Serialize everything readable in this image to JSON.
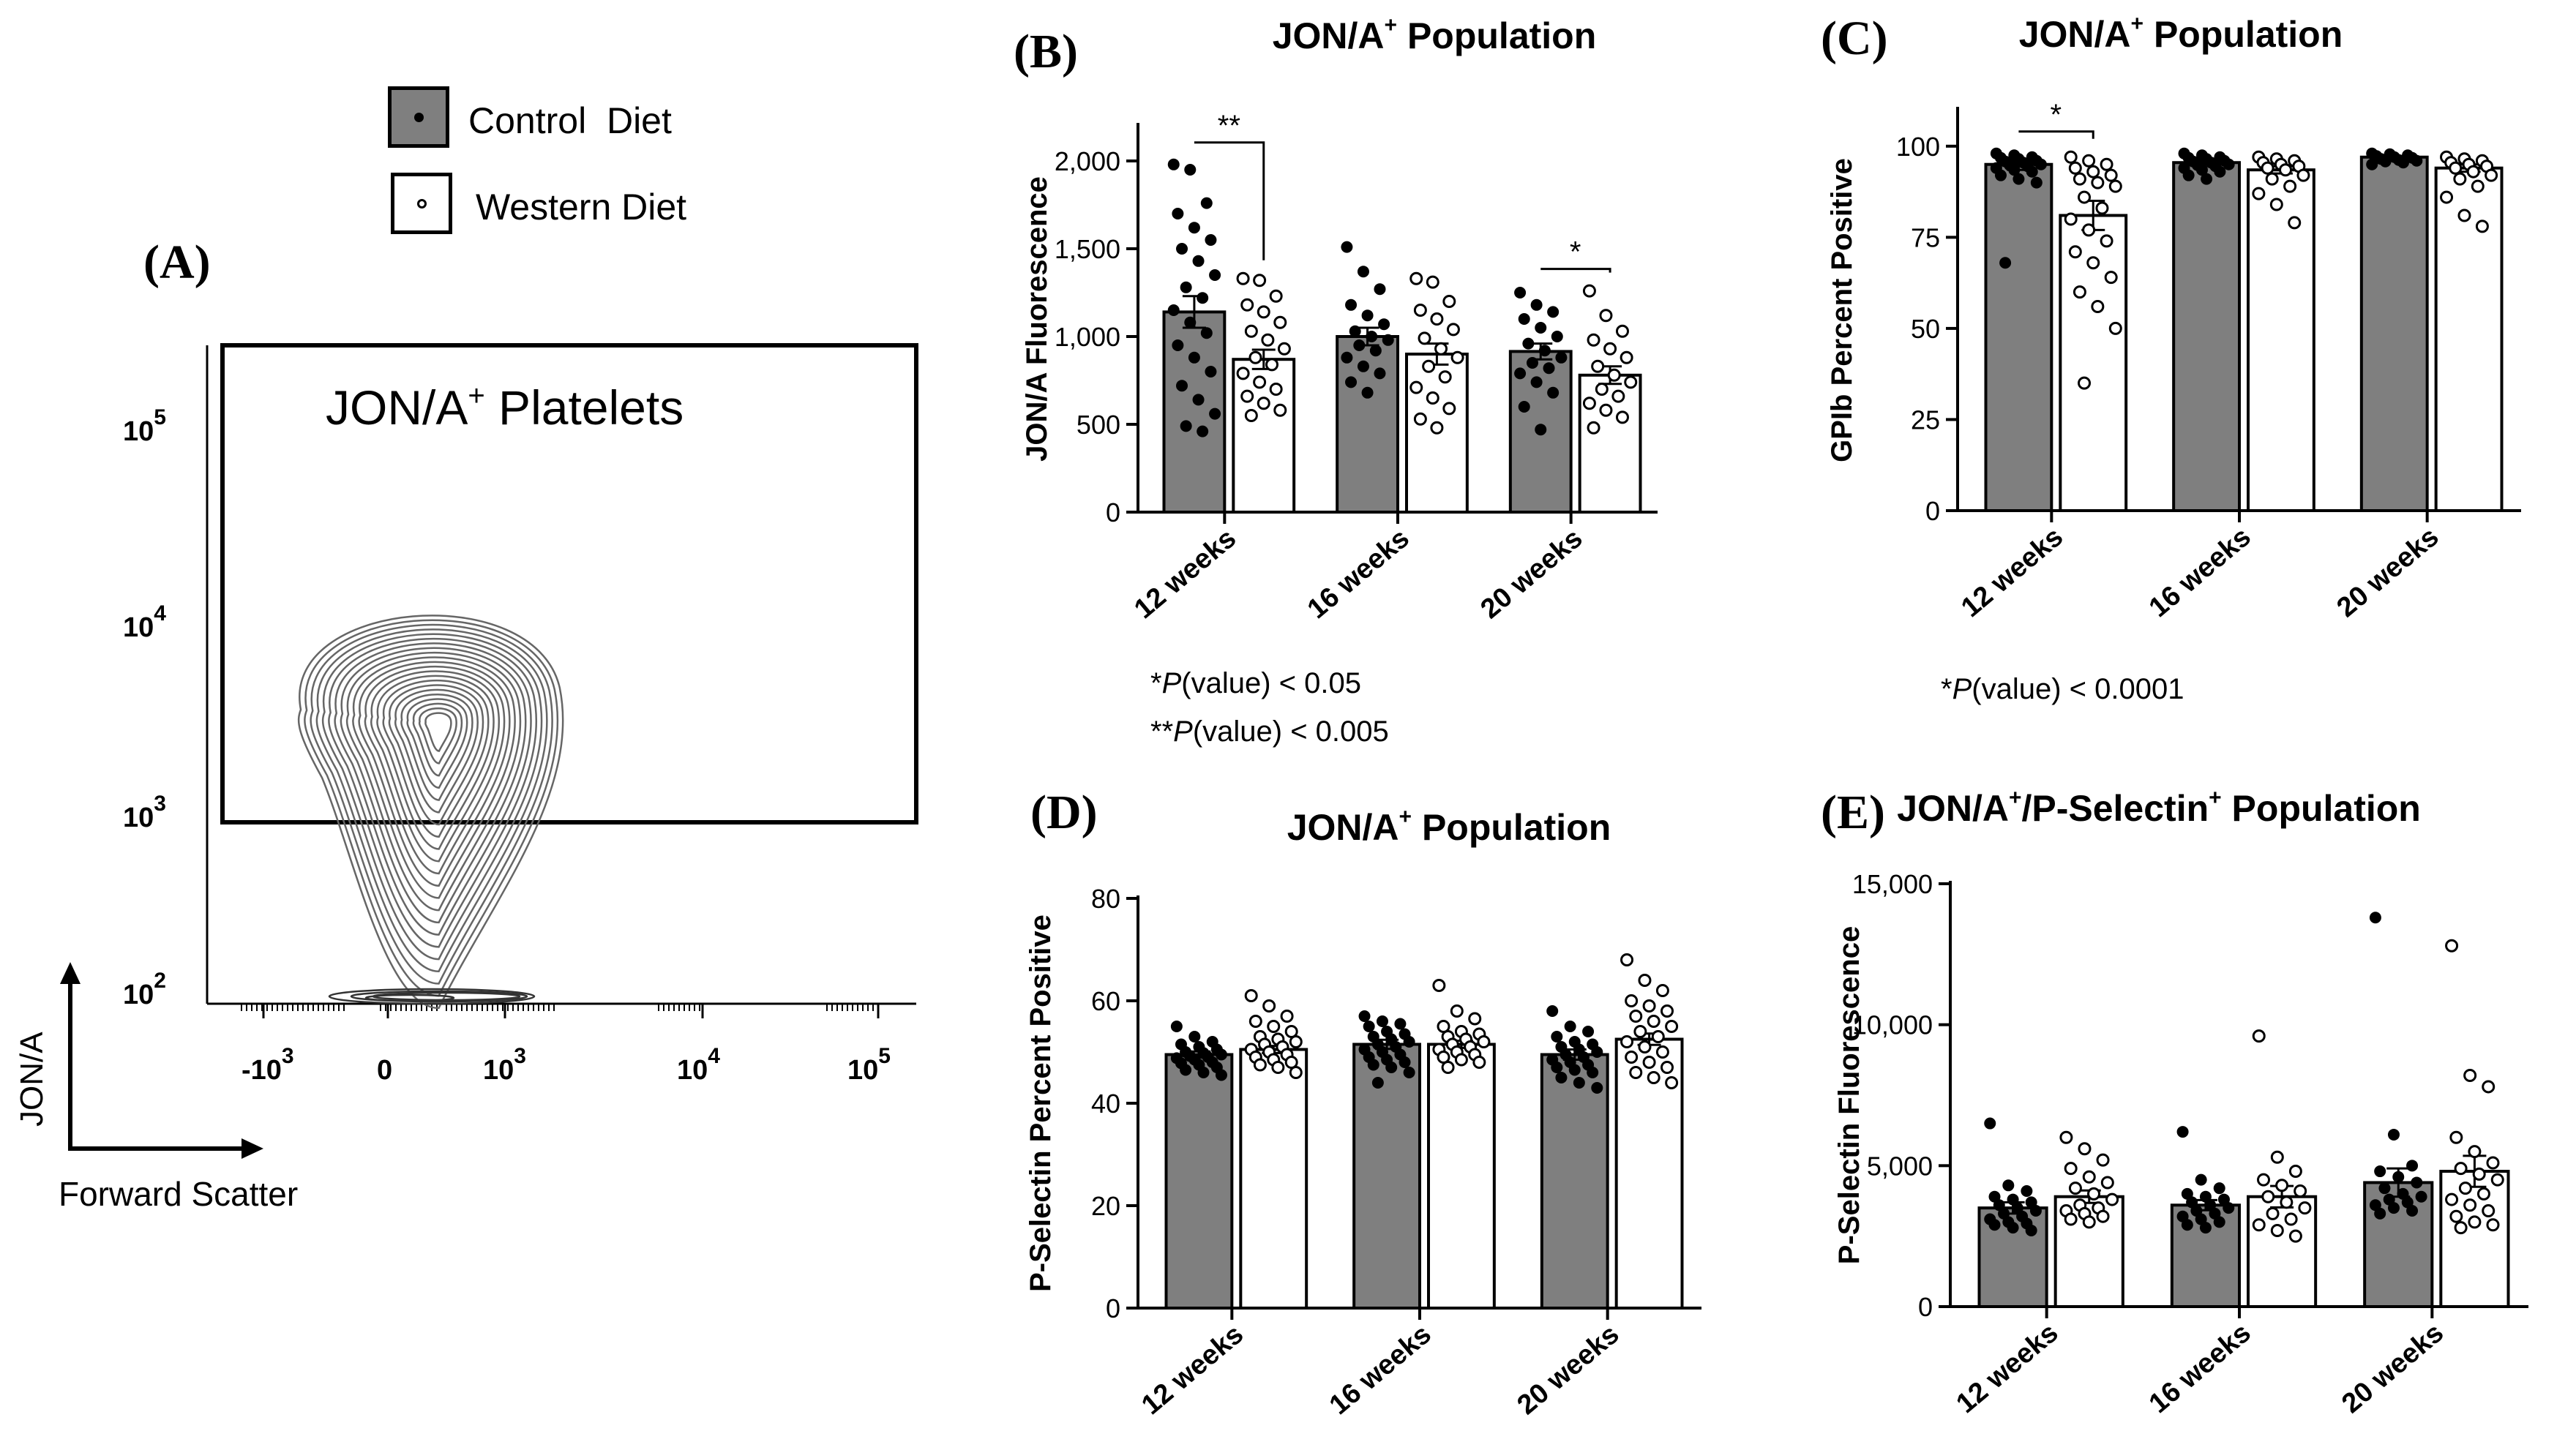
{
  "legend": {
    "items": [
      {
        "label": "Control  Diet",
        "fill": "#7f7f7f"
      },
      {
        "label": "Western Diet",
        "fill": "#ffffff"
      }
    ]
  },
  "panel_a": {
    "letter": "(A)",
    "gate_label_prefix": "JON/A",
    "gate_label_sup": "+",
    "gate_label_suffix": " Platelets",
    "y_axis_label": "JON/A",
    "x_axis_label": "Forward Scatter",
    "y_ticks": [
      {
        "base": "10",
        "exp": "5"
      },
      {
        "base": "10",
        "exp": "4"
      },
      {
        "base": "10",
        "exp": "3"
      },
      {
        "base": "10",
        "exp": "2"
      }
    ],
    "x_ticks": [
      {
        "base": "-10",
        "exp": "3"
      },
      {
        "base": "0",
        "exp": ""
      },
      {
        "base": "10",
        "exp": "3"
      },
      {
        "base": "10",
        "exp": "4"
      },
      {
        "base": "10",
        "exp": "5"
      }
    ]
  },
  "footnotes": {
    "b1_prefix": "*",
    "b1_italic": "P",
    "b1_suffix": "(value) < 0.05",
    "b2_prefix": "**",
    "b2_italic": "P",
    "b2_suffix": "(value) < 0.005",
    "c1_prefix": "*",
    "c1_italic": "P",
    "c1_suffix": "(value) < 0.0001"
  },
  "chart_data": [
    {
      "id": "B",
      "letter": "(B)",
      "type": "bar",
      "title": "JON/A",
      "title_sup": "+",
      "title_suffix": " Population",
      "ylabel": "JON/A Fluorescence",
      "categories": [
        "12 weeks",
        "16 weeks",
        "20 weeks"
      ],
      "ylim": [
        0,
        2200
      ],
      "yticks": [
        0,
        500,
        1000,
        1500,
        2000
      ],
      "ytick_labels": [
        "0",
        "500",
        "1,000",
        "1,500",
        "2,000"
      ],
      "series": [
        {
          "name": "Control  Diet",
          "fill": "#7f7f7f",
          "values": [
            1140,
            1000,
            915
          ],
          "sem": [
            90,
            50,
            45
          ],
          "points": [
            [
              1980,
              1950,
              1760,
              1700,
              1620,
              1550,
              1500,
              1430,
              1350,
              1280,
              1220,
              1150,
              1080,
              1020,
              950,
              880,
              800,
              720,
              640,
              560,
              490,
              460
            ],
            [
              1510,
              1370,
              1270,
              1180,
              1120,
              1070,
              1030,
              1000,
              980,
              950,
              920,
              880,
              830,
              790,
              740,
              680
            ],
            [
              1250,
              1180,
              1140,
              1100,
              1050,
              1000,
              960,
              920,
              880,
              850,
              820,
              790,
              740,
              680,
              600,
              470
            ]
          ]
        },
        {
          "name": "Western Diet",
          "fill": "#ffffff",
          "values": [
            870,
            900,
            780
          ],
          "sem": [
            55,
            60,
            50
          ],
          "points": [
            [
              1330,
              1320,
              1230,
              1180,
              1140,
              1080,
              1030,
              980,
              930,
              880,
              840,
              790,
              740,
              700,
              660,
              620,
              580,
              550
            ],
            [
              1330,
              1310,
              1200,
              1150,
              1100,
              1040,
              990,
              930,
              880,
              830,
              770,
              710,
              650,
              590,
              530,
              480
            ],
            [
              1260,
              1120,
              1030,
              980,
              930,
              880,
              830,
              780,
              740,
              700,
              660,
              620,
              580,
              540,
              480
            ]
          ]
        }
      ],
      "brackets": [
        {
          "category": 0,
          "label": "**"
        },
        {
          "category": 2,
          "label": "*"
        }
      ]
    },
    {
      "id": "C",
      "letter": "(C)",
      "type": "bar",
      "title": "JON/A",
      "title_sup": "+",
      "title_suffix": " Population",
      "ylabel": "GPIb Percent Positive",
      "categories": [
        "12 weeks",
        "16 weeks",
        "20 weeks"
      ],
      "ylim": [
        0,
        110
      ],
      "yticks": [
        0,
        25,
        50,
        75,
        100
      ],
      "ytick_labels": [
        "0",
        "25",
        "50",
        "75",
        "100"
      ],
      "series": [
        {
          "name": "Control  Diet",
          "fill": "#7f7f7f",
          "values": [
            95,
            95.5,
            97
          ],
          "sem": [
            1.5,
            0.5,
            0.3
          ],
          "points": [
            [
              98,
              97.5,
              97,
              96.8,
              96.5,
              96,
              95.8,
              95.5,
              95,
              94.8,
              94.5,
              94,
              93.5,
              93,
              92,
              91,
              90,
              68
            ],
            [
              98,
              97.5,
              97,
              96.8,
              96.5,
              96,
              95.8,
              95.5,
              95,
              94.8,
              94.5,
              94,
              93.5,
              93,
              92,
              91
            ],
            [
              98,
              97.8,
              97.5,
              97.3,
              97,
              96.8,
              96.5,
              96.2,
              96,
              95.8,
              95.5,
              95
            ]
          ]
        },
        {
          "name": "Western Diet",
          "fill": "#ffffff",
          "values": [
            81,
            93.5,
            94
          ],
          "sem": [
            4,
            1,
            1
          ],
          "points": [
            [
              97,
              96,
              95,
              94,
              93,
              92,
              91,
              90,
              89,
              86,
              83,
              80,
              77,
              74,
              71,
              68,
              64,
              60,
              56,
              50,
              35
            ],
            [
              97,
              96.5,
              96,
              95.5,
              95,
              94.5,
              94,
              93.5,
              92,
              91,
              89,
              87,
              84,
              79
            ],
            [
              97,
              96.5,
              96,
              95.5,
              95,
              94.5,
              94,
              93,
              92,
              91,
              89,
              86,
              81,
              78
            ]
          ]
        }
      ],
      "brackets": [
        {
          "category": 0,
          "label": "*"
        }
      ]
    },
    {
      "id": "D",
      "letter": "(D)",
      "type": "bar",
      "title": "JON/A",
      "title_sup": "+",
      "title_suffix": " Population",
      "ylabel": "P-Selectin Percent Positive",
      "categories": [
        "12 weeks",
        "16 weeks",
        "20 weeks"
      ],
      "ylim": [
        0,
        80
      ],
      "yticks": [
        0,
        20,
        40,
        60,
        80
      ],
      "ytick_labels": [
        "0",
        "20",
        "40",
        "60",
        "80"
      ],
      "series": [
        {
          "name": "Control  Diet",
          "fill": "#7f7f7f",
          "values": [
            49.5,
            51.5,
            49.5
          ],
          "sem": [
            0.6,
            0.9,
            1.0
          ],
          "points": [
            [
              55,
              53,
              52,
              51.5,
              51,
              50.5,
              50,
              49.8,
              49.5,
              49.2,
              49,
              48.8,
              48.5,
              48,
              47.8,
              47.5,
              47,
              46.5,
              46,
              45.5
            ],
            [
              57,
              56,
              55.5,
              55,
              54,
              53.5,
              53,
              52.5,
              52,
              51.5,
              51,
              50.5,
              50,
              49.5,
              49,
              48.5,
              48,
              47.5,
              47,
              46,
              44
            ],
            [
              58,
              55,
              54,
              53,
              52,
              51.5,
              51,
              50.5,
              50,
              49.5,
              49,
              48.5,
              48,
              47.5,
              47,
              46.5,
              46,
              45,
              44,
              43
            ]
          ]
        },
        {
          "name": "Western Diet",
          "fill": "#ffffff",
          "values": [
            50.5,
            51.5,
            52.5
          ],
          "sem": [
            0.7,
            0.7,
            1.1
          ],
          "points": [
            [
              61,
              59,
              57,
              56,
              55,
              54,
              53,
              52.5,
              52,
              51.5,
              51,
              50.5,
              50,
              49.5,
              49,
              48.5,
              48,
              47.5,
              47,
              46
            ],
            [
              63,
              58,
              56.5,
              55,
              54,
              53.5,
              53,
              52.5,
              52,
              51.5,
              51,
              50.5,
              50,
              49.5,
              49,
              48.5,
              48,
              47
            ],
            [
              68,
              64,
              62,
              60,
              59,
              58,
              57,
              56,
              55,
              54,
              53,
              52,
              51,
              50,
              49,
              48,
              47,
              46,
              45,
              44
            ]
          ]
        }
      ],
      "brackets": []
    },
    {
      "id": "E",
      "letter": "(E)",
      "type": "bar",
      "title": "JON/A",
      "title_sup": "+",
      "title_middle": "/P-Selectin",
      "title_sup2": "+",
      "title_suffix": " Population",
      "ylabel": "P-Selectin Fluorescence",
      "categories": [
        "12 weeks",
        "16 weeks",
        "20 weeks"
      ],
      "ylim": [
        0,
        15000
      ],
      "yticks": [
        0,
        5000,
        10000,
        15000
      ],
      "ytick_labels": [
        "0",
        "5,000",
        "10,000",
        "15,000"
      ],
      "series": [
        {
          "name": "Control  Diet",
          "fill": "#7f7f7f",
          "values": [
            3500,
            3600,
            4400
          ],
          "sem": [
            200,
            180,
            500
          ],
          "points": [
            [
              6500,
              4300,
              4100,
              3900,
              3800,
              3700,
              3600,
              3500,
              3400,
              3300,
              3200,
              3100,
              3000,
              2950,
              2900,
              2800,
              2700
            ],
            [
              6200,
              4500,
              4200,
              4000,
              3900,
              3800,
              3700,
              3600,
              3500,
              3400,
              3300,
              3200,
              3100,
              3000,
              2900,
              2800
            ],
            [
              13800,
              6100,
              5000,
              4800,
              4600,
              4400,
              4200,
              4000,
              3900,
              3800,
              3700,
              3600,
              3500,
              3400,
              3300
            ]
          ]
        },
        {
          "name": "Western Diet",
          "fill": "#ffffff",
          "values": [
            3900,
            3900,
            4800
          ],
          "sem": [
            220,
            380,
            550
          ],
          "points": [
            [
              6000,
              5600,
              5200,
              4900,
              4600,
              4400,
              4200,
              4000,
              3800,
              3600,
              3500,
              3400,
              3300,
              3200,
              3100,
              3000
            ],
            [
              9600,
              5300,
              4800,
              4500,
              4300,
              4100,
              3900,
              3700,
              3500,
              3300,
              3100,
              2900,
              2700,
              2500
            ],
            [
              12800,
              8200,
              7800,
              6000,
              5500,
              5100,
              4900,
              4700,
              4500,
              4200,
              4000,
              3800,
              3600,
              3400,
              3200,
              3000,
              2900,
              2800
            ]
          ]
        }
      ],
      "brackets": []
    }
  ]
}
